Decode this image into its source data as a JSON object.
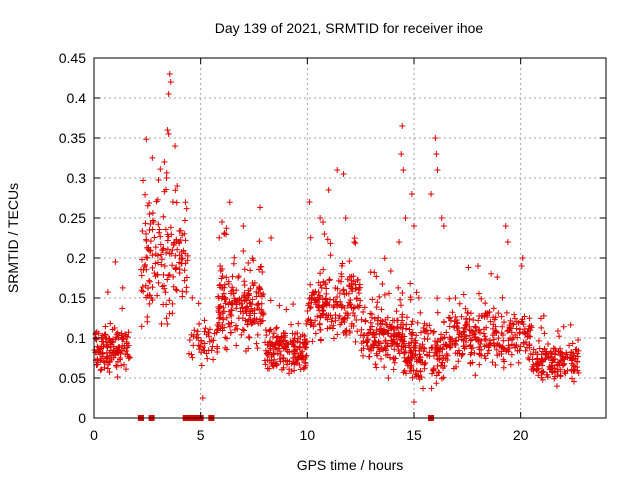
{
  "chart_data": {
    "type": "scatter",
    "title": "Day 139 of 2021, SRMTID for receiver ihoe",
    "xlabel": "GPS time / hours",
    "ylabel": "SRMTID / TECUs",
    "xlim": [
      0,
      24
    ],
    "ylim": [
      0,
      0.45
    ],
    "grid": true,
    "marker": "+",
    "color": "#e00000",
    "x_ticks": [
      0,
      5,
      10,
      15,
      20
    ],
    "x_tick_labels": [
      "0",
      "5",
      "10",
      "15",
      "20"
    ],
    "y_ticks": [
      0,
      0.05,
      0.1,
      0.15,
      0.2,
      0.25,
      0.3,
      0.35,
      0.4,
      0.45
    ],
    "y_tick_labels": [
      "0",
      "0.05",
      "0.1",
      "0.15",
      "0.2",
      "0.25",
      "0.3",
      "0.35",
      "0.4",
      "0.45"
    ],
    "clusters": [
      {
        "x_start": 0.0,
        "x_end": 1.7,
        "y_center": 0.085,
        "y_spread": 0.04,
        "count": 140
      },
      {
        "x_start": 2.2,
        "x_end": 4.4,
        "y_center": 0.2,
        "y_spread": 0.12,
        "count": 160
      },
      {
        "x_start": 4.4,
        "x_end": 5.8,
        "y_center": 0.09,
        "y_spread": 0.04,
        "count": 50
      },
      {
        "x_start": 5.8,
        "x_end": 8.0,
        "y_center": 0.14,
        "y_spread": 0.07,
        "count": 200
      },
      {
        "x_start": 8.0,
        "x_end": 10.0,
        "y_center": 0.085,
        "y_spread": 0.04,
        "count": 180
      },
      {
        "x_start": 10.0,
        "x_end": 12.5,
        "y_center": 0.14,
        "y_spread": 0.07,
        "count": 200
      },
      {
        "x_start": 12.5,
        "x_end": 14.5,
        "y_center": 0.1,
        "y_spread": 0.05,
        "count": 180
      },
      {
        "x_start": 14.5,
        "x_end": 16.5,
        "y_center": 0.08,
        "y_spread": 0.05,
        "count": 180
      },
      {
        "x_start": 16.5,
        "x_end": 20.5,
        "y_center": 0.1,
        "y_spread": 0.05,
        "count": 280
      },
      {
        "x_start": 20.5,
        "x_end": 22.8,
        "y_center": 0.07,
        "y_spread": 0.035,
        "count": 160
      }
    ],
    "peaks": [
      {
        "x": 3.55,
        "y": 0.43
      },
      {
        "x": 3.6,
        "y": 0.42
      },
      {
        "x": 3.5,
        "y": 0.405
      },
      {
        "x": 3.45,
        "y": 0.36
      },
      {
        "x": 3.5,
        "y": 0.355
      },
      {
        "x": 3.3,
        "y": 0.32
      },
      {
        "x": 3.4,
        "y": 0.3
      },
      {
        "x": 3.8,
        "y": 0.34
      },
      {
        "x": 3.9,
        "y": 0.29
      },
      {
        "x": 3.7,
        "y": 0.27
      },
      {
        "x": 4.0,
        "y": 0.22
      },
      {
        "x": 14.45,
        "y": 0.365
      },
      {
        "x": 14.4,
        "y": 0.33
      },
      {
        "x": 14.5,
        "y": 0.31
      },
      {
        "x": 14.6,
        "y": 0.25
      },
      {
        "x": 14.3,
        "y": 0.22
      },
      {
        "x": 16.0,
        "y": 0.35
      },
      {
        "x": 16.05,
        "y": 0.33
      },
      {
        "x": 16.1,
        "y": 0.31
      },
      {
        "x": 15.8,
        "y": 0.28
      },
      {
        "x": 16.3,
        "y": 0.25
      },
      {
        "x": 11.4,
        "y": 0.31
      },
      {
        "x": 11.0,
        "y": 0.285
      },
      {
        "x": 11.7,
        "y": 0.305
      },
      {
        "x": 11.8,
        "y": 0.25
      },
      {
        "x": 10.1,
        "y": 0.27
      },
      {
        "x": 10.6,
        "y": 0.25
      },
      {
        "x": 10.8,
        "y": 0.23
      },
      {
        "x": 12.2,
        "y": 0.22
      },
      {
        "x": 20.1,
        "y": 0.2
      },
      {
        "x": 20.05,
        "y": 0.19
      },
      {
        "x": 19.3,
        "y": 0.24
      },
      {
        "x": 19.4,
        "y": 0.22
      },
      {
        "x": 14.9,
        "y": 0.28
      },
      {
        "x": 15.0,
        "y": 0.24
      },
      {
        "x": 6.0,
        "y": 0.245
      },
      {
        "x": 6.1,
        "y": 0.23
      },
      {
        "x": 2.6,
        "y": 0.235
      },
      {
        "x": 2.8,
        "y": 0.245
      },
      {
        "x": 1.0,
        "y": 0.195
      },
      {
        "x": 7.0,
        "y": 0.24
      },
      {
        "x": 8.3,
        "y": 0.225
      },
      {
        "x": 18.0,
        "y": 0.19
      },
      {
        "x": 16.4,
        "y": 0.24
      },
      {
        "x": 5.1,
        "y": 0.025
      },
      {
        "x": 15.0,
        "y": 0.02
      },
      {
        "x": 13.8,
        "y": 0.05
      }
    ],
    "zero_points_x": [
      2.2,
      2.7,
      4.3,
      4.4,
      4.5,
      4.6,
      4.7,
      4.8,
      4.9,
      5.0,
      5.5,
      15.8
    ]
  }
}
